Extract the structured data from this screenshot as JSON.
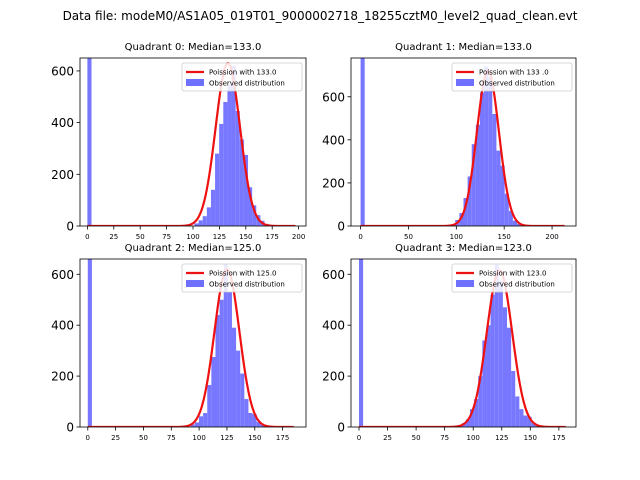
{
  "figure": {
    "suptitle": "Data file: modeM0/AS1A05_019T01_9000002718_18255cztM0_level2_quad_clean.evt"
  },
  "colors": {
    "bars": "#7070ff",
    "poisson": "#ee1111",
    "axis": "#000000"
  },
  "chart_data": [
    {
      "type": "bar",
      "title": "Quadrant 0: Median=133.0",
      "xlim": [
        -7,
        207
      ],
      "ylim": [
        0,
        650
      ],
      "xticks": [
        0,
        25,
        50,
        75,
        100,
        125,
        150,
        175,
        200
      ],
      "yticks": [
        0,
        200,
        400,
        600
      ],
      "legend": {
        "position": "top-right",
        "entries": [
          "Poission with 133.0",
          "Observed distribution"
        ]
      },
      "series": [
        {
          "name": "Observed distribution",
          "type": "bar",
          "bin_width": 3.9,
          "bins": [
            {
              "x": 0,
              "y": 650
            },
            {
              "x": 101.4,
              "y": 10
            },
            {
              "x": 105.3,
              "y": 22
            },
            {
              "x": 109.2,
              "y": 38
            },
            {
              "x": 113.1,
              "y": 72
            },
            {
              "x": 117.0,
              "y": 140
            },
            {
              "x": 120.9,
              "y": 280
            },
            {
              "x": 124.8,
              "y": 395
            },
            {
              "x": 128.7,
              "y": 480
            },
            {
              "x": 132.6,
              "y": 545
            },
            {
              "x": 136.5,
              "y": 620
            },
            {
              "x": 140.4,
              "y": 445
            },
            {
              "x": 144.3,
              "y": 335
            },
            {
              "x": 148.2,
              "y": 275
            },
            {
              "x": 152.1,
              "y": 150
            },
            {
              "x": 156.0,
              "y": 80
            },
            {
              "x": 159.9,
              "y": 42
            },
            {
              "x": 163.8,
              "y": 20
            },
            {
              "x": 167.7,
              "y": 8
            },
            {
              "x": 171.6,
              "y": 3
            }
          ]
        },
        {
          "name": "Poission with 133.0",
          "type": "line",
          "mean": 133.0,
          "peak": 630,
          "x_range": [
            0,
            197
          ]
        }
      ]
    },
    {
      "type": "bar",
      "title": "Quadrant 1: Median=133.0",
      "xlim": [
        -10,
        225
      ],
      "ylim": [
        0,
        780
      ],
      "xticks": [
        0,
        50,
        100,
        150,
        200
      ],
      "yticks": [
        0,
        200,
        400,
        600
      ],
      "legend": {
        "position": "top-right",
        "entries": [
          "Poission with 133 .0",
          "Observed distribution"
        ]
      },
      "series": [
        {
          "name": "Observed distribution",
          "type": "bar",
          "bin_width": 4.3,
          "bins": [
            {
              "x": 0,
              "y": 780
            },
            {
              "x": 94.6,
              "y": 8
            },
            {
              "x": 98.9,
              "y": 28
            },
            {
              "x": 103.2,
              "y": 60
            },
            {
              "x": 107.5,
              "y": 130
            },
            {
              "x": 111.8,
              "y": 230
            },
            {
              "x": 116.1,
              "y": 380
            },
            {
              "x": 120.4,
              "y": 470
            },
            {
              "x": 124.7,
              "y": 620
            },
            {
              "x": 129.0,
              "y": 740
            },
            {
              "x": 133.3,
              "y": 690
            },
            {
              "x": 137.6,
              "y": 520
            },
            {
              "x": 141.9,
              "y": 350
            },
            {
              "x": 146.2,
              "y": 280
            },
            {
              "x": 150.5,
              "y": 150
            },
            {
              "x": 154.8,
              "y": 70
            },
            {
              "x": 159.1,
              "y": 25
            },
            {
              "x": 163.4,
              "y": 10
            },
            {
              "x": 167.7,
              "y": 4
            }
          ]
        },
        {
          "name": "Poission with 133 .0",
          "type": "line",
          "mean": 133.0,
          "peak": 720,
          "x_range": [
            0,
            213
          ]
        }
      ]
    },
    {
      "type": "bar",
      "title": "Quadrant 2: Median=125.0",
      "xlim": [
        -7,
        196
      ],
      "ylim": [
        0,
        660
      ],
      "xticks": [
        0,
        25,
        50,
        75,
        100,
        125,
        150,
        175
      ],
      "yticks": [
        0,
        200,
        400,
        600
      ],
      "legend": {
        "position": "top-right",
        "entries": [
          "Poission with 125.0",
          "Observed distribution"
        ]
      },
      "series": [
        {
          "name": "Observed distribution",
          "type": "bar",
          "bin_width": 3.7,
          "bins": [
            {
              "x": 0,
              "y": 660
            },
            {
              "x": 92.5,
              "y": 10
            },
            {
              "x": 96.2,
              "y": 18
            },
            {
              "x": 99.9,
              "y": 42
            },
            {
              "x": 103.6,
              "y": 55
            },
            {
              "x": 107.3,
              "y": 165
            },
            {
              "x": 111.0,
              "y": 275
            },
            {
              "x": 114.7,
              "y": 440
            },
            {
              "x": 118.4,
              "y": 500
            },
            {
              "x": 122.1,
              "y": 640
            },
            {
              "x": 125.8,
              "y": 530
            },
            {
              "x": 129.5,
              "y": 390
            },
            {
              "x": 133.2,
              "y": 300
            },
            {
              "x": 136.9,
              "y": 210
            },
            {
              "x": 140.6,
              "y": 110
            },
            {
              "x": 144.3,
              "y": 55
            },
            {
              "x": 148.0,
              "y": 50
            },
            {
              "x": 151.7,
              "y": 20
            },
            {
              "x": 155.4,
              "y": 8
            },
            {
              "x": 159.1,
              "y": 3
            }
          ]
        },
        {
          "name": "Poission with 125.0",
          "type": "line",
          "mean": 125.0,
          "peak": 620,
          "x_range": [
            0,
            185
          ]
        }
      ]
    },
    {
      "type": "bar",
      "title": "Quadrant 3: Median=123.0",
      "xlim": [
        -7,
        190
      ],
      "ylim": [
        0,
        660
      ],
      "xticks": [
        0,
        25,
        50,
        75,
        100,
        125,
        150,
        175
      ],
      "yticks": [
        0,
        200,
        400,
        600
      ],
      "legend": {
        "position": "top-right",
        "entries": [
          "Poission with 123.0",
          "Observed distribution"
        ]
      },
      "series": [
        {
          "name": "Observed distribution",
          "type": "bar",
          "bin_width": 3.6,
          "bins": [
            {
              "x": 0,
              "y": 660
            },
            {
              "x": 72.0,
              "y": 3
            },
            {
              "x": 86.4,
              "y": 8
            },
            {
              "x": 90.0,
              "y": 15
            },
            {
              "x": 93.6,
              "y": 30
            },
            {
              "x": 97.2,
              "y": 70
            },
            {
              "x": 100.8,
              "y": 110
            },
            {
              "x": 104.4,
              "y": 200
            },
            {
              "x": 108.0,
              "y": 340
            },
            {
              "x": 111.6,
              "y": 400
            },
            {
              "x": 115.2,
              "y": 520
            },
            {
              "x": 118.8,
              "y": 640
            },
            {
              "x": 122.4,
              "y": 575
            },
            {
              "x": 126.0,
              "y": 470
            },
            {
              "x": 129.6,
              "y": 390
            },
            {
              "x": 133.2,
              "y": 220
            },
            {
              "x": 136.8,
              "y": 120
            },
            {
              "x": 140.4,
              "y": 70
            },
            {
              "x": 144.0,
              "y": 45
            },
            {
              "x": 147.6,
              "y": 40
            },
            {
              "x": 151.2,
              "y": 15
            },
            {
              "x": 154.8,
              "y": 5
            }
          ]
        },
        {
          "name": "Poission with 123.0",
          "type": "line",
          "mean": 123.0,
          "peak": 615,
          "x_range": [
            0,
            181
          ]
        }
      ]
    }
  ]
}
